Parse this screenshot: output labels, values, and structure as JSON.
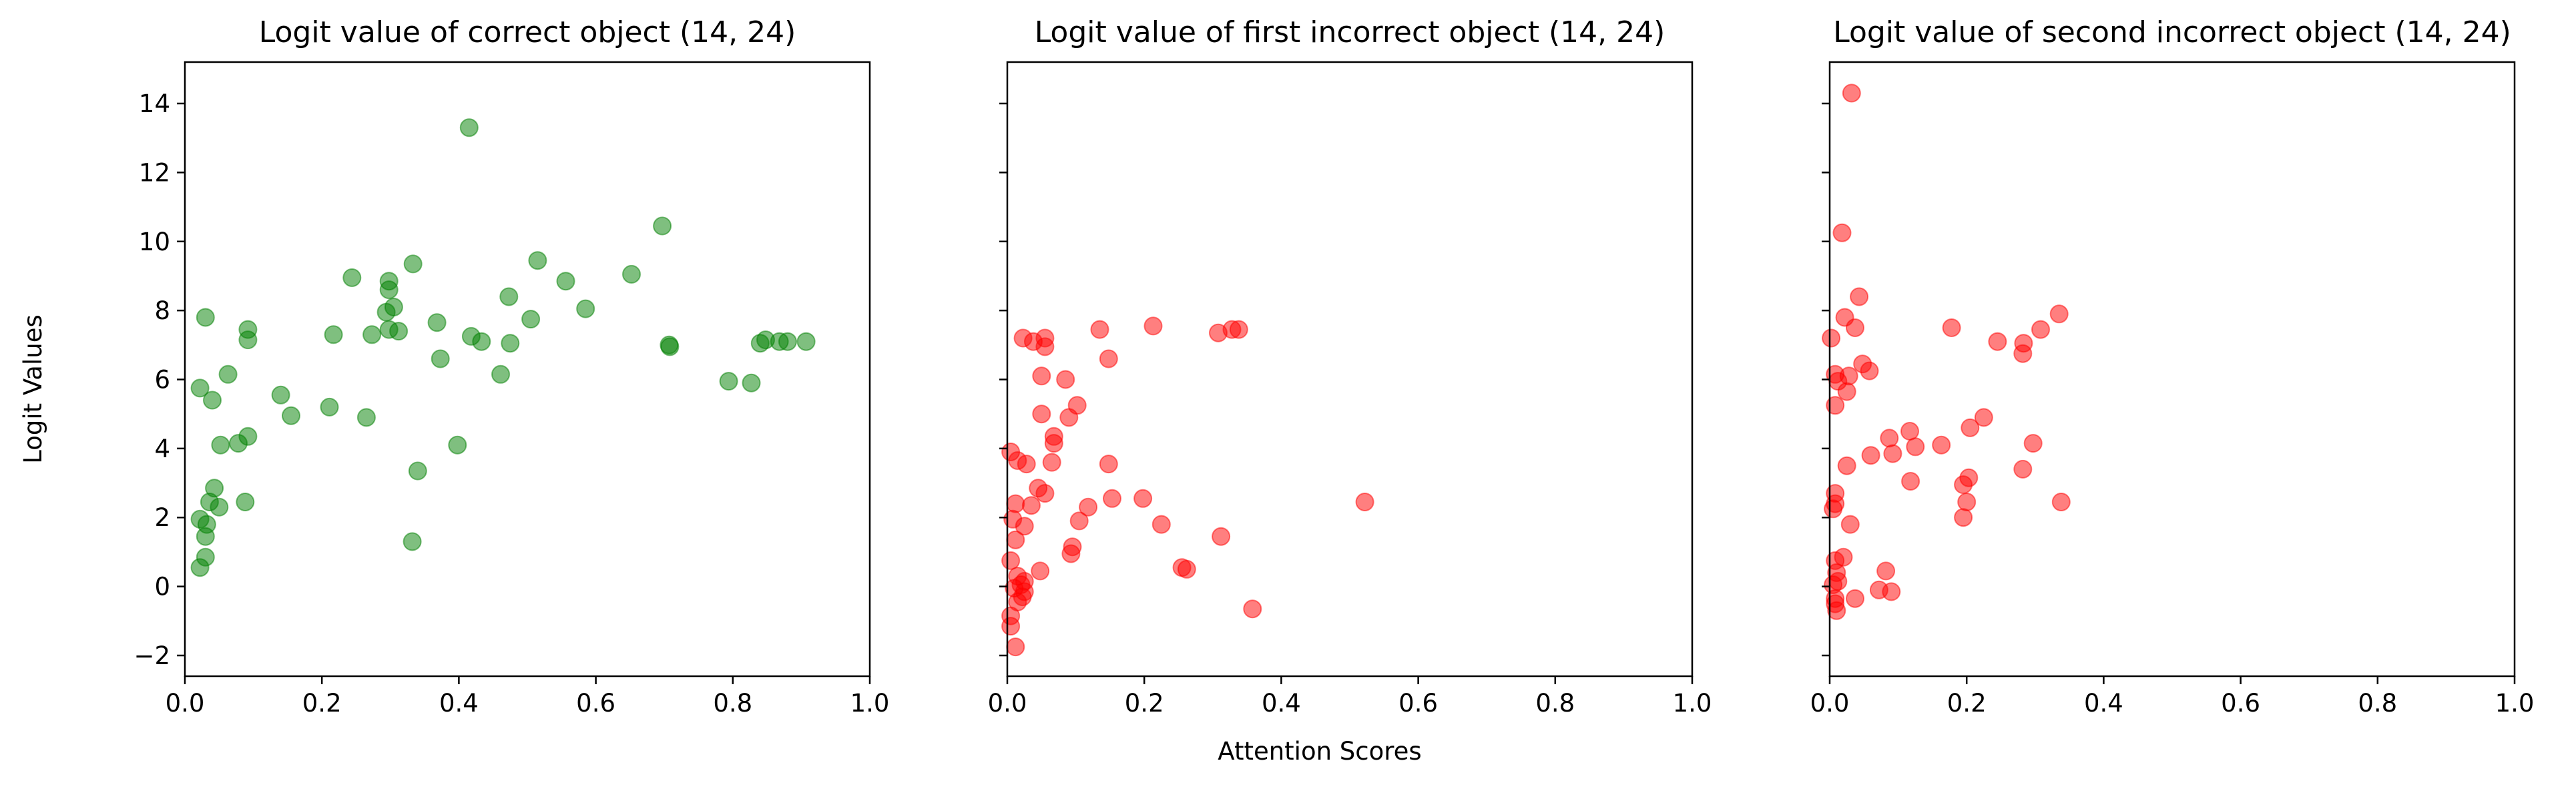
{
  "figure": {
    "ylabel": "Logit Values",
    "xlabel": "Attention Scores"
  },
  "chart_data": [
    {
      "type": "scatter",
      "title": "Logit value of correct object (14, 24)",
      "color": "#008000",
      "xlim": [
        0.0,
        1.0
      ],
      "ylim": [
        -2.6,
        15.2
      ],
      "x_ticks": [
        "0.0",
        "0.2",
        "0.4",
        "0.6",
        "0.8",
        "1.0"
      ],
      "y_ticks": [
        "−2",
        "0",
        "2",
        "4",
        "6",
        "8",
        "10",
        "12",
        "14"
      ],
      "show_y_tick_labels": true,
      "grid": false,
      "points": [
        [
          0.415,
          13.3
        ],
        [
          0.697,
          10.45
        ],
        [
          0.515,
          9.45
        ],
        [
          0.333,
          9.35
        ],
        [
          0.652,
          9.05
        ],
        [
          0.244,
          8.95
        ],
        [
          0.556,
          8.85
        ],
        [
          0.298,
          8.85
        ],
        [
          0.298,
          8.6
        ],
        [
          0.473,
          8.4
        ],
        [
          0.305,
          8.1
        ],
        [
          0.294,
          7.95
        ],
        [
          0.585,
          8.05
        ],
        [
          0.505,
          7.75
        ],
        [
          0.03,
          7.8
        ],
        [
          0.368,
          7.65
        ],
        [
          0.092,
          7.45
        ],
        [
          0.298,
          7.45
        ],
        [
          0.312,
          7.4
        ],
        [
          0.273,
          7.3
        ],
        [
          0.217,
          7.3
        ],
        [
          0.418,
          7.25
        ],
        [
          0.092,
          7.15
        ],
        [
          0.433,
          7.1
        ],
        [
          0.475,
          7.05
        ],
        [
          0.707,
          7.0
        ],
        [
          0.708,
          6.95
        ],
        [
          0.84,
          7.05
        ],
        [
          0.848,
          7.15
        ],
        [
          0.868,
          7.1
        ],
        [
          0.88,
          7.1
        ],
        [
          0.907,
          7.1
        ],
        [
          0.373,
          6.6
        ],
        [
          0.461,
          6.15
        ],
        [
          0.063,
          6.15
        ],
        [
          0.794,
          5.95
        ],
        [
          0.827,
          5.9
        ],
        [
          0.022,
          5.75
        ],
        [
          0.14,
          5.55
        ],
        [
          0.04,
          5.4
        ],
        [
          0.211,
          5.2
        ],
        [
          0.155,
          4.95
        ],
        [
          0.265,
          4.9
        ],
        [
          0.092,
          4.35
        ],
        [
          0.078,
          4.15
        ],
        [
          0.052,
          4.1
        ],
        [
          0.398,
          4.1
        ],
        [
          0.34,
          3.35
        ],
        [
          0.043,
          2.85
        ],
        [
          0.036,
          2.45
        ],
        [
          0.05,
          2.3
        ],
        [
          0.088,
          2.45
        ],
        [
          0.022,
          1.95
        ],
        [
          0.032,
          1.8
        ],
        [
          0.03,
          1.45
        ],
        [
          0.332,
          1.3
        ],
        [
          0.03,
          0.85
        ],
        [
          0.022,
          0.55
        ]
      ]
    },
    {
      "type": "scatter",
      "title": "Logit value of first incorrect object (14, 24)",
      "color": "#ff0000",
      "xlim": [
        0.0,
        1.0
      ],
      "ylim": [
        -2.6,
        15.2
      ],
      "x_ticks": [
        "0.0",
        "0.2",
        "0.4",
        "0.6",
        "0.8",
        "1.0"
      ],
      "y_ticks": [
        "−2",
        "0",
        "2",
        "4",
        "6",
        "8",
        "10",
        "12",
        "14"
      ],
      "show_y_tick_labels": false,
      "grid": false,
      "points": [
        [
          0.213,
          7.55
        ],
        [
          0.338,
          7.45
        ],
        [
          0.328,
          7.45
        ],
        [
          0.135,
          7.45
        ],
        [
          0.308,
          7.35
        ],
        [
          0.023,
          7.2
        ],
        [
          0.055,
          7.2
        ],
        [
          0.038,
          7.1
        ],
        [
          0.055,
          6.95
        ],
        [
          0.148,
          6.6
        ],
        [
          0.05,
          6.1
        ],
        [
          0.085,
          6.0
        ],
        [
          0.102,
          5.25
        ],
        [
          0.05,
          5.0
        ],
        [
          0.09,
          4.9
        ],
        [
          0.068,
          4.35
        ],
        [
          0.068,
          4.15
        ],
        [
          0.005,
          3.9
        ],
        [
          0.015,
          3.65
        ],
        [
          0.065,
          3.6
        ],
        [
          0.028,
          3.55
        ],
        [
          0.148,
          3.55
        ],
        [
          0.045,
          2.85
        ],
        [
          0.055,
          2.7
        ],
        [
          0.198,
          2.55
        ],
        [
          0.153,
          2.55
        ],
        [
          0.522,
          2.45
        ],
        [
          0.012,
          2.4
        ],
        [
          0.035,
          2.35
        ],
        [
          0.118,
          2.3
        ],
        [
          0.008,
          1.95
        ],
        [
          0.105,
          1.9
        ],
        [
          0.025,
          1.75
        ],
        [
          0.225,
          1.8
        ],
        [
          0.312,
          1.45
        ],
        [
          0.012,
          1.35
        ],
        [
          0.095,
          1.15
        ],
        [
          0.093,
          0.95
        ],
        [
          0.005,
          0.75
        ],
        [
          0.255,
          0.55
        ],
        [
          0.262,
          0.5
        ],
        [
          0.048,
          0.45
        ],
        [
          0.015,
          0.3
        ],
        [
          0.025,
          0.15
        ],
        [
          0.02,
          0.05
        ],
        [
          0.01,
          -0.05
        ],
        [
          0.025,
          -0.15
        ],
        [
          0.022,
          -0.3
        ],
        [
          0.015,
          -0.45
        ],
        [
          0.358,
          -0.65
        ],
        [
          0.005,
          -0.85
        ],
        [
          0.005,
          -1.15
        ],
        [
          0.012,
          -1.75
        ]
      ]
    },
    {
      "type": "scatter",
      "title": "Logit value of second incorrect object (14, 24)",
      "color": "#ff0000",
      "xlim": [
        0.0,
        1.0
      ],
      "ylim": [
        -2.6,
        15.2
      ],
      "x_ticks": [
        "0.0",
        "0.2",
        "0.4",
        "0.6",
        "0.8",
        "1.0"
      ],
      "y_ticks": [
        "−2",
        "0",
        "2",
        "4",
        "6",
        "8",
        "10",
        "12",
        "14"
      ],
      "show_y_tick_labels": false,
      "grid": false,
      "points": [
        [
          0.032,
          14.3
        ],
        [
          0.018,
          10.25
        ],
        [
          0.043,
          8.4
        ],
        [
          0.335,
          7.9
        ],
        [
          0.022,
          7.8
        ],
        [
          0.037,
          7.5
        ],
        [
          0.178,
          7.5
        ],
        [
          0.308,
          7.45
        ],
        [
          0.002,
          7.2
        ],
        [
          0.245,
          7.1
        ],
        [
          0.283,
          7.05
        ],
        [
          0.282,
          6.75
        ],
        [
          0.048,
          6.45
        ],
        [
          0.058,
          6.25
        ],
        [
          0.008,
          6.15
        ],
        [
          0.028,
          6.1
        ],
        [
          0.012,
          5.95
        ],
        [
          0.025,
          5.65
        ],
        [
          0.008,
          5.25
        ],
        [
          0.225,
          4.9
        ],
        [
          0.117,
          4.5
        ],
        [
          0.205,
          4.6
        ],
        [
          0.087,
          4.3
        ],
        [
          0.297,
          4.15
        ],
        [
          0.125,
          4.05
        ],
        [
          0.163,
          4.1
        ],
        [
          0.092,
          3.85
        ],
        [
          0.06,
          3.8
        ],
        [
          0.025,
          3.5
        ],
        [
          0.282,
          3.4
        ],
        [
          0.203,
          3.15
        ],
        [
          0.118,
          3.05
        ],
        [
          0.195,
          2.95
        ],
        [
          0.008,
          2.7
        ],
        [
          0.008,
          2.4
        ],
        [
          0.2,
          2.45
        ],
        [
          0.338,
          2.45
        ],
        [
          0.005,
          2.25
        ],
        [
          0.195,
          2.0
        ],
        [
          0.03,
          1.8
        ],
        [
          0.02,
          0.85
        ],
        [
          0.008,
          0.75
        ],
        [
          0.082,
          0.45
        ],
        [
          0.01,
          0.4
        ],
        [
          0.012,
          0.15
        ],
        [
          0.005,
          0.05
        ],
        [
          0.072,
          -0.1
        ],
        [
          0.09,
          -0.15
        ],
        [
          0.008,
          -0.35
        ],
        [
          0.037,
          -0.35
        ],
        [
          0.008,
          -0.5
        ],
        [
          0.01,
          -0.7
        ]
      ]
    }
  ]
}
